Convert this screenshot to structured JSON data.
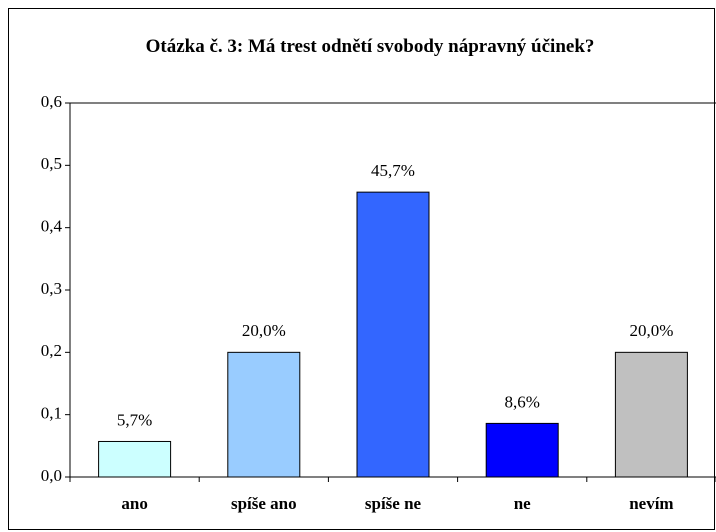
{
  "chart_data": {
    "type": "bar",
    "title": "Otázka č. 3: Má trest odnětí svobody nápravný účinek?",
    "categories": [
      "ano",
      "spíše ano",
      "spíše ne",
      "ne",
      "nevím"
    ],
    "values": [
      0.057,
      0.2,
      0.457,
      0.086,
      0.2
    ],
    "value_labels": [
      "5,7%",
      "20,0%",
      "45,7%",
      "8,6%",
      "20,0%"
    ],
    "colors": [
      "#ccffff",
      "#99ccff",
      "#3366ff",
      "#0000ff",
      "#c0c0c0"
    ],
    "ylim": [
      0,
      0.6
    ],
    "yticks": [
      {
        "value": 0,
        "label": "0,0"
      },
      {
        "value": 0.1,
        "label": "0,1"
      },
      {
        "value": 0.2,
        "label": "0,2"
      },
      {
        "value": 0.3,
        "label": "0,3"
      },
      {
        "value": 0.4,
        "label": "0,4"
      },
      {
        "value": 0.5,
        "label": "0,5"
      },
      {
        "value": 0.6,
        "label": "0,6"
      }
    ],
    "grid": false
  }
}
